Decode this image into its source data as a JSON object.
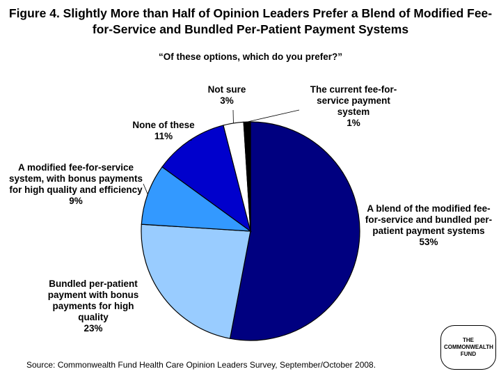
{
  "chart_data": {
    "type": "pie",
    "title": "Figure 4. Slightly More than Half of Opinion Leaders Prefer a Blend of Modified Fee-for-Service and Bundled Per-Patient Payment Systems",
    "subtitle": "“Of these options, which do you prefer?”",
    "slices": [
      {
        "label": "A blend of the modified fee-for-service and bundled per-patient payment systems",
        "value": 53,
        "display": "53%",
        "color": "#000080"
      },
      {
        "label": "Bundled per-patient payment with bonus payments for high quality",
        "value": 23,
        "display": "23%",
        "color": "#99ccff"
      },
      {
        "label": "A modified fee-for-service system, with bonus payments for high quality and efficiency",
        "value": 9,
        "display": "9%",
        "color": "#3399ff"
      },
      {
        "label": "None of these",
        "value": 11,
        "display": "11%",
        "color": "#0000cc"
      },
      {
        "label": "Not sure",
        "value": 3,
        "display": "3%",
        "color": "#ffffff"
      },
      {
        "label": "The current fee-for-service payment system",
        "value": 1,
        "display": "1%",
        "color": "#000000"
      }
    ]
  },
  "source": "Source: Commonwealth Fund Health Care Opinion Leaders Survey, September/October 2008.",
  "logo_text": "THE COMMONWEALTH FUND"
}
